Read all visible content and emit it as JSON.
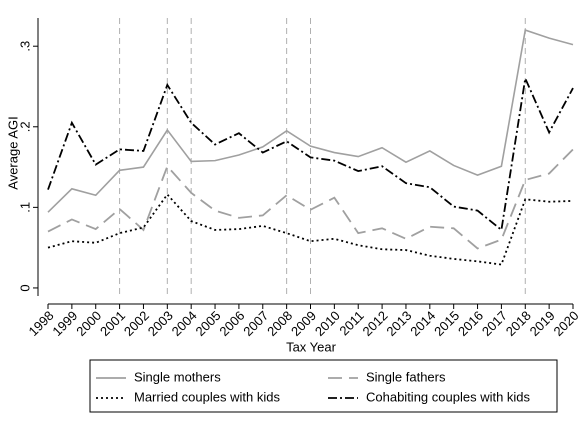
{
  "chart_data": {
    "type": "line",
    "x_label": "Tax Year",
    "y_label": "Average AGI",
    "x": [
      1998,
      1999,
      2000,
      2001,
      2002,
      2003,
      2004,
      2005,
      2006,
      2007,
      2008,
      2009,
      2010,
      2011,
      2012,
      2013,
      2014,
      2015,
      2016,
      2017,
      2018,
      2019,
      2020
    ],
    "xlim": [
      1998,
      2020
    ],
    "xticks": [
      1998,
      1999,
      2000,
      2001,
      2002,
      2003,
      2004,
      2005,
      2006,
      2007,
      2008,
      2009,
      2010,
      2011,
      2012,
      2013,
      2014,
      2015,
      2016,
      2017,
      2018,
      2019,
      2020
    ],
    "ylim": [
      -0.01,
      0.335
    ],
    "yticks": [
      0,
      {
        "value": 0.1,
        "label": ".1"
      },
      {
        "value": 0.2,
        "label": ".2"
      },
      {
        "value": 0.3,
        "label": ".3"
      }
    ],
    "vlines": [
      2001,
      2003,
      2004,
      2008,
      2009,
      2018
    ],
    "vline_color": "#b0b0b0",
    "series": [
      {
        "name": "Single mothers",
        "color": "#a0a0a0",
        "dash": "solid",
        "values": [
          0.094,
          0.123,
          0.115,
          0.146,
          0.15,
          0.196,
          0.157,
          0.158,
          0.165,
          0.175,
          0.195,
          0.176,
          0.168,
          0.163,
          0.174,
          0.156,
          0.17,
          0.152,
          0.14,
          0.151,
          0.32,
          0.31,
          0.302
        ]
      },
      {
        "name": "Single fathers",
        "color": "#a0a0a0",
        "dash": "longdash",
        "values": [
          0.07,
          0.085,
          0.073,
          0.098,
          0.072,
          0.151,
          0.118,
          0.096,
          0.087,
          0.09,
          0.115,
          0.097,
          0.112,
          0.068,
          0.074,
          0.061,
          0.076,
          0.074,
          0.049,
          0.06,
          0.134,
          0.142,
          0.172
        ]
      },
      {
        "name": "Married couples with kids",
        "color": "#000000",
        "dash": "dot",
        "values": [
          0.05,
          0.058,
          0.056,
          0.068,
          0.075,
          0.116,
          0.083,
          0.072,
          0.073,
          0.077,
          0.068,
          0.058,
          0.061,
          0.053,
          0.048,
          0.047,
          0.04,
          0.036,
          0.033,
          0.029,
          0.11,
          0.107,
          0.108
        ]
      },
      {
        "name": "Cohabiting couples with kids",
        "color": "#000000",
        "dash": "dashdot",
        "values": [
          0.122,
          0.205,
          0.153,
          0.172,
          0.17,
          0.252,
          0.205,
          0.178,
          0.192,
          0.168,
          0.182,
          0.162,
          0.158,
          0.145,
          0.151,
          0.13,
          0.125,
          0.101,
          0.096,
          0.072,
          0.26,
          0.193,
          0.248
        ]
      }
    ]
  }
}
